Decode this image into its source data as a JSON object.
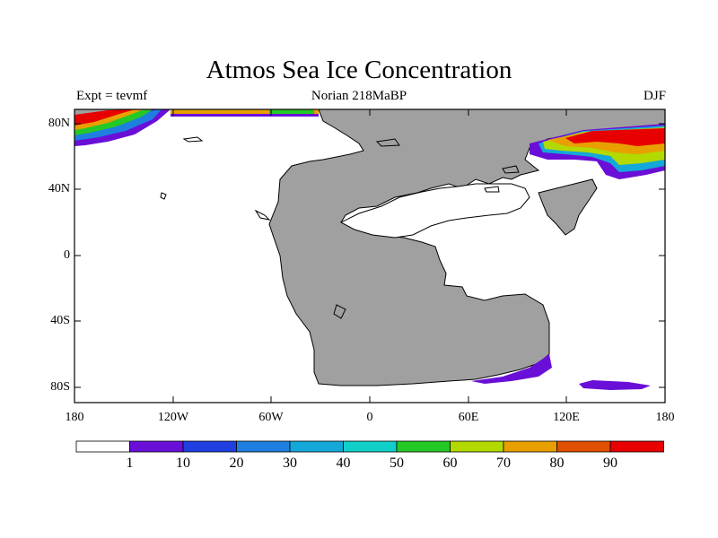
{
  "title": "Atmos Sea Ice Concentration",
  "subtitle_left": "Expt = tevmf",
  "subtitle_center": "Norian 218MaBP",
  "subtitle_right": "DJF",
  "y_axis_labels": [
    "80N",
    "40N",
    "0",
    "40S",
    "80S"
  ],
  "x_axis_labels": [
    "180",
    "120W",
    "60W",
    "0",
    "60E",
    "120E",
    "180"
  ],
  "colorbar": {
    "levels": [
      "1",
      "10",
      "20",
      "30",
      "40",
      "50",
      "60",
      "70",
      "80",
      "90"
    ],
    "colors": [
      "#ffffff",
      "#6a0fd8",
      "#1f3fe0",
      "#1f7fe0",
      "#14a8d8",
      "#10cfc8",
      "#25c925",
      "#b2d900",
      "#e8a000",
      "#e05000",
      "#e80000"
    ]
  },
  "colors": {
    "land": "#a0a0a0",
    "ocean": "#ffffff",
    "coast": "#000000"
  }
}
